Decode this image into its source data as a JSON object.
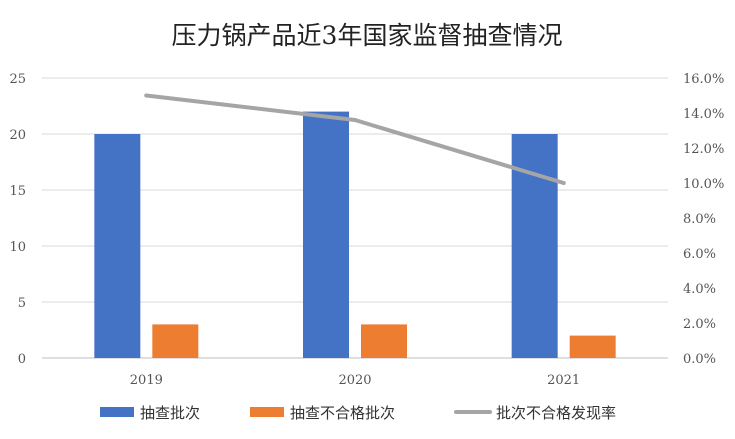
{
  "chart_data": {
    "type": "bar",
    "title": "压力锅产品近3年国家监督抽查情况",
    "categories": [
      "2019",
      "2020",
      "2021"
    ],
    "series": [
      {
        "name": "抽查批次",
        "kind": "bar",
        "axis": "left",
        "color": "#4472C4",
        "values": [
          20,
          22,
          20
        ]
      },
      {
        "name": "抽查不合格批次",
        "kind": "bar",
        "axis": "left",
        "color": "#ED7D31",
        "values": [
          3,
          3,
          2
        ]
      },
      {
        "name": "批次不合格发现率",
        "kind": "line",
        "axis": "right",
        "color": "#A5A5A5",
        "values": [
          15.0,
          13.6,
          10.0
        ]
      }
    ],
    "y_left": {
      "min": 0,
      "max": 25,
      "ticks": [
        "0",
        "5",
        "10",
        "15",
        "20",
        "25"
      ]
    },
    "y_right": {
      "min": 0,
      "max": 16,
      "ticks": [
        "0.0%",
        "2.0%",
        "4.0%",
        "6.0%",
        "8.0%",
        "10.0%",
        "12.0%",
        "14.0%",
        "16.0%"
      ]
    },
    "grid": true,
    "legend_position": "bottom"
  }
}
